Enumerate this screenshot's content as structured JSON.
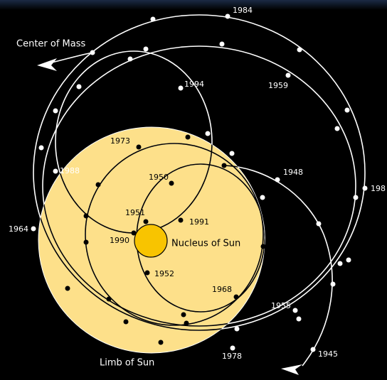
{
  "labels": {
    "center_of_mass": "Center of Mass",
    "nucleus": "Nucleus of Sun",
    "limb": "Limb of Sun",
    "years": [
      "1984",
      "1959",
      "1994",
      "1973",
      "1988",
      "1950",
      "1948",
      "198",
      "1951",
      "1991",
      "1964",
      "1990",
      "1952",
      "1968",
      "1955",
      "1945",
      "1978"
    ]
  }
}
